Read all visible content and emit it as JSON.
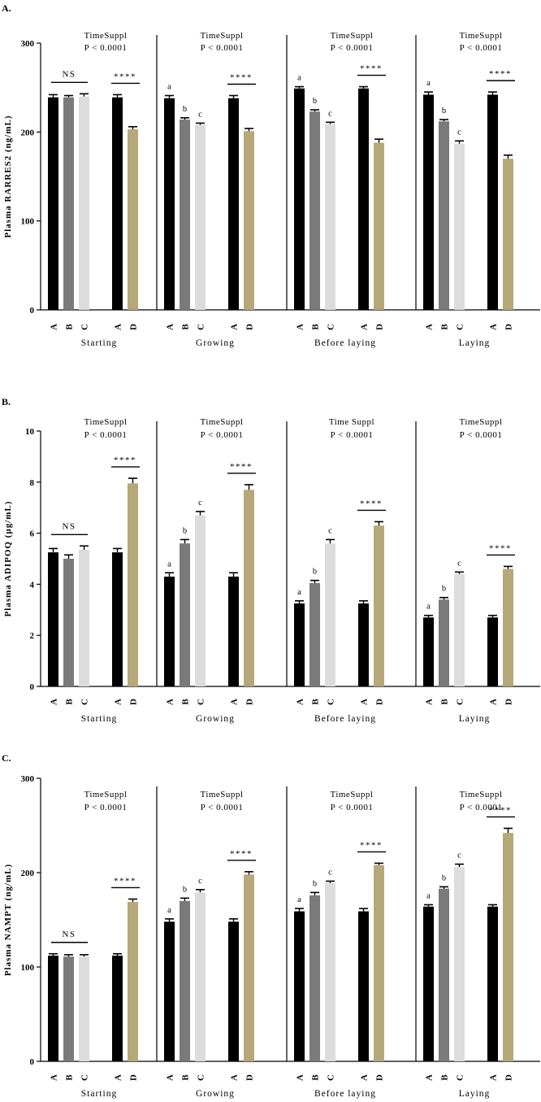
{
  "colors": {
    "A": "#000000",
    "B": "#7a7a7a",
    "C": "#dcdcdc",
    "D": "#b5a97a"
  },
  "chart_data": [
    {
      "type": "bar",
      "panel_label": "A.",
      "ylabel": "Plasma RARRES2 (ng/mL)",
      "ylim": [
        0,
        300
      ],
      "yticks": [
        0,
        100,
        200,
        300
      ],
      "groups": [
        {
          "name": "Starting",
          "stat_line1": "TimeSuppl",
          "stat_line2": "P < 0.0001",
          "categories": [
            "A",
            "B",
            "C",
            "A",
            "D"
          ],
          "values": [
            239,
            239,
            240,
            239,
            203
          ],
          "errors": [
            3,
            2,
            3,
            3,
            3
          ],
          "letters": [
            "",
            "",
            "",
            "",
            ""
          ],
          "ns_label": "NS",
          "sig_label": "****"
        },
        {
          "name": "Growing",
          "stat_line1": "TimeSuppl",
          "stat_line2": "P < 0.0001",
          "categories": [
            "A",
            "B",
            "C",
            "A",
            "D"
          ],
          "values": [
            238,
            214,
            208,
            238,
            201
          ],
          "errors": [
            3,
            2,
            2,
            3,
            3
          ],
          "letters": [
            "a",
            "b",
            "c",
            "",
            ""
          ],
          "ns_label": "",
          "sig_label": "****"
        },
        {
          "name": "Before laying",
          "stat_line1": "TimeSuppl",
          "stat_line2": "P < 0.0001",
          "categories": [
            "A",
            "B",
            "C",
            "A",
            "D"
          ],
          "values": [
            249,
            223,
            209,
            249,
            188
          ],
          "errors": [
            2,
            2,
            2,
            2,
            4
          ],
          "letters": [
            "a",
            "b",
            "c",
            "",
            ""
          ],
          "ns_label": "",
          "sig_label": "****"
        },
        {
          "name": "Laying",
          "stat_line1": "TimeSuppl",
          "stat_line2": "P < 0.0001",
          "categories": [
            "A",
            "B",
            "C",
            "A",
            "D"
          ],
          "values": [
            242,
            212,
            187,
            242,
            170
          ],
          "errors": [
            3,
            2,
            3,
            3,
            4
          ],
          "letters": [
            "a",
            "b",
            "c",
            "",
            ""
          ],
          "ns_label": "",
          "sig_label": "****"
        }
      ]
    },
    {
      "type": "bar",
      "panel_label": "B.",
      "ylabel": "Plasma ADIPOQ (µg/mL)",
      "ylim": [
        0,
        10
      ],
      "yticks": [
        0,
        2,
        4,
        6,
        8,
        10
      ],
      "groups": [
        {
          "name": "Starting",
          "stat_line1": "TimeSuppl",
          "stat_line2": "P < 0.0001",
          "categories": [
            "A",
            "B",
            "C",
            "A",
            "D"
          ],
          "values": [
            5.25,
            5.0,
            5.35,
            5.25,
            7.95
          ],
          "errors": [
            0.15,
            0.15,
            0.15,
            0.15,
            0.2
          ],
          "letters": [
            "",
            "",
            "",
            "",
            ""
          ],
          "ns_label": "NS",
          "sig_label": "****"
        },
        {
          "name": "Growing",
          "stat_line1": "TimeSuppl",
          "stat_line2": "P < 0.0001",
          "categories": [
            "A",
            "B",
            "C",
            "A",
            "D"
          ],
          "values": [
            4.3,
            5.6,
            6.7,
            4.3,
            7.7
          ],
          "errors": [
            0.15,
            0.15,
            0.15,
            0.15,
            0.2
          ],
          "letters": [
            "a",
            "b",
            "c",
            "",
            ""
          ],
          "ns_label": "",
          "sig_label": "****"
        },
        {
          "name": "Before laying",
          "stat_line1": "Time Suppl",
          "stat_line2": "P < 0.0001",
          "categories": [
            "A",
            "B",
            "C",
            "A",
            "D"
          ],
          "values": [
            3.25,
            4.05,
            5.6,
            3.25,
            6.3
          ],
          "errors": [
            0.1,
            0.1,
            0.15,
            0.1,
            0.15
          ],
          "letters": [
            "a",
            "b",
            "c",
            "",
            ""
          ],
          "ns_label": "",
          "sig_label": "****"
        },
        {
          "name": "Laying",
          "stat_line1": "TimeSuppl",
          "stat_line2": "P < 0.0001",
          "categories": [
            "A",
            "B",
            "C",
            "A",
            "D"
          ],
          "values": [
            2.7,
            3.4,
            4.4,
            2.7,
            4.6
          ],
          "errors": [
            0.08,
            0.08,
            0.08,
            0.08,
            0.1
          ],
          "letters": [
            "a",
            "b",
            "c",
            "",
            ""
          ],
          "ns_label": "",
          "sig_label": "****"
        }
      ]
    },
    {
      "type": "bar",
      "panel_label": "C.",
      "ylabel": "Plasma NAMPT (ng/mL)",
      "ylim": [
        0,
        300
      ],
      "yticks": [
        0,
        100,
        200,
        300
      ],
      "groups": [
        {
          "name": "Starting",
          "stat_line1": "TimeSuppl",
          "stat_line2": "P < 0.0001",
          "categories": [
            "A",
            "B",
            "C",
            "A",
            "D"
          ],
          "values": [
            112,
            111,
            111,
            112,
            169
          ],
          "errors": [
            2,
            2,
            2,
            2,
            3
          ],
          "letters": [
            "",
            "",
            "",
            "",
            ""
          ],
          "ns_label": "NS",
          "sig_label": "****"
        },
        {
          "name": "Growing",
          "stat_line1": "TimeSuppl",
          "stat_line2": "P < 0.0001",
          "categories": [
            "A",
            "B",
            "C",
            "A",
            "D"
          ],
          "values": [
            148,
            170,
            179,
            148,
            198
          ],
          "errors": [
            3,
            3,
            3,
            3,
            3
          ],
          "letters": [
            "a",
            "b",
            "c",
            "",
            ""
          ],
          "ns_label": "",
          "sig_label": "****"
        },
        {
          "name": "Before laying",
          "stat_line1": "TimeSuppl",
          "stat_line2": "P < 0.0001",
          "categories": [
            "A",
            "B",
            "C",
            "A",
            "D"
          ],
          "values": [
            159,
            176,
            189,
            159,
            208
          ],
          "errors": [
            3,
            3,
            2,
            3,
            2
          ],
          "letters": [
            "a",
            "b",
            "c",
            "",
            ""
          ],
          "ns_label": "",
          "sig_label": "****"
        },
        {
          "name": "Laying",
          "stat_line1": "TimeSuppl",
          "stat_line2": "P < 0.0001",
          "categories": [
            "A",
            "B",
            "C",
            "A",
            "D"
          ],
          "values": [
            164,
            183,
            206,
            164,
            242
          ],
          "errors": [
            2,
            2,
            3,
            2,
            5
          ],
          "letters": [
            "a",
            "b",
            "c",
            "",
            ""
          ],
          "ns_label": "",
          "sig_label": "****"
        }
      ]
    }
  ]
}
